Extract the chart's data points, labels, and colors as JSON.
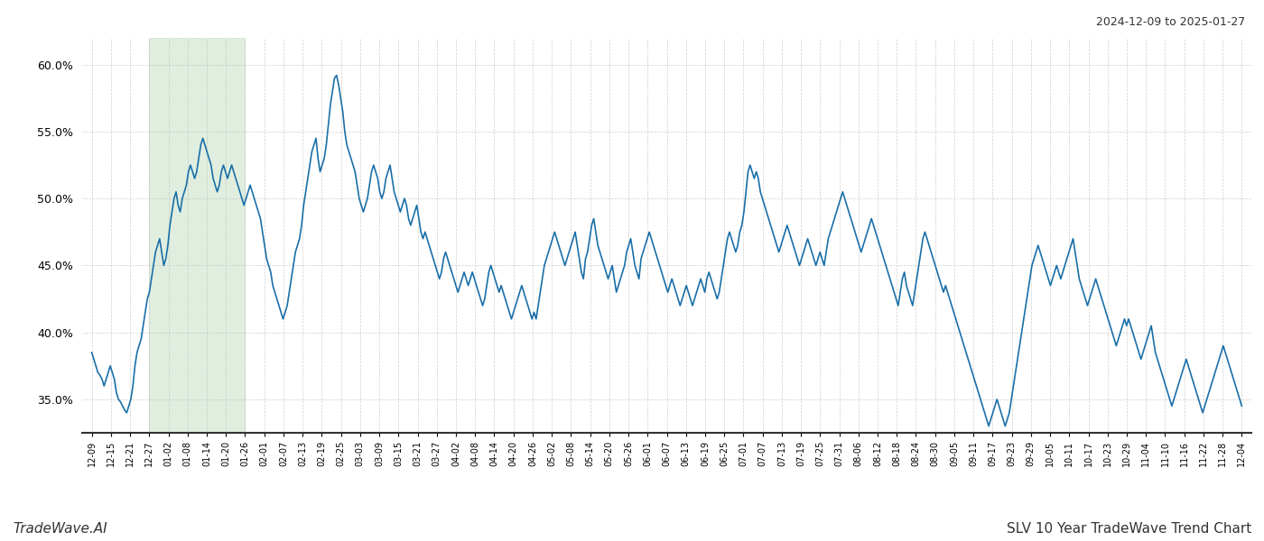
{
  "title_topright": "2024-12-09 to 2025-01-27",
  "title_bottomleft": "TradeWave.AI",
  "title_bottomright": "SLV 10 Year TradeWave Trend Chart",
  "background_color": "#ffffff",
  "line_color": "#1a6fa8",
  "line_width": 1.2,
  "shade_color": "#c8e0c8",
  "shade_alpha": 0.55,
  "ylim": [
    32.5,
    62.0
  ],
  "yticks": [
    35.0,
    40.0,
    45.0,
    50.0,
    55.0,
    60.0
  ],
  "xtick_labels": [
    "12-09",
    "12-15",
    "12-21",
    "12-27",
    "01-02",
    "01-08",
    "01-14",
    "01-20",
    "01-26",
    "02-01",
    "02-07",
    "02-13",
    "02-19",
    "02-25",
    "03-03",
    "03-09",
    "03-15",
    "03-21",
    "03-27",
    "04-02",
    "04-08",
    "04-14",
    "04-20",
    "04-26",
    "05-02",
    "05-08",
    "05-14",
    "05-20",
    "05-26",
    "06-01",
    "06-07",
    "06-13",
    "06-19",
    "06-25",
    "07-01",
    "07-07",
    "07-13",
    "07-19",
    "07-25",
    "07-31",
    "08-06",
    "08-12",
    "08-18",
    "08-24",
    "08-30",
    "09-05",
    "09-11",
    "09-17",
    "09-23",
    "09-29",
    "10-05",
    "10-11",
    "10-17",
    "10-23",
    "10-29",
    "11-04",
    "11-10",
    "11-16",
    "11-22",
    "11-28",
    "12-04"
  ],
  "shade_x_start_label": "12-27",
  "shade_x_end_label": "01-26",
  "y_values": [
    38.5,
    38.0,
    37.5,
    37.0,
    36.8,
    36.5,
    36.0,
    36.5,
    37.0,
    37.5,
    37.0,
    36.5,
    35.5,
    35.0,
    34.8,
    34.5,
    34.2,
    34.0,
    34.5,
    35.0,
    36.0,
    37.5,
    38.5,
    39.0,
    39.5,
    40.5,
    41.5,
    42.5,
    43.0,
    44.0,
    45.0,
    46.0,
    46.5,
    47.0,
    46.0,
    45.0,
    45.5,
    46.5,
    48.0,
    49.0,
    50.0,
    50.5,
    49.5,
    49.0,
    50.0,
    50.5,
    51.0,
    52.0,
    52.5,
    52.0,
    51.5,
    52.0,
    53.0,
    54.0,
    54.5,
    54.0,
    53.5,
    53.0,
    52.5,
    51.5,
    51.0,
    50.5,
    51.0,
    52.0,
    52.5,
    52.0,
    51.5,
    52.0,
    52.5,
    52.0,
    51.5,
    51.0,
    50.5,
    50.0,
    49.5,
    50.0,
    50.5,
    51.0,
    50.5,
    50.0,
    49.5,
    49.0,
    48.5,
    47.5,
    46.5,
    45.5,
    45.0,
    44.5,
    43.5,
    43.0,
    42.5,
    42.0,
    41.5,
    41.0,
    41.5,
    42.0,
    43.0,
    44.0,
    45.0,
    46.0,
    46.5,
    47.0,
    48.0,
    49.5,
    50.5,
    51.5,
    52.5,
    53.5,
    54.0,
    54.5,
    53.0,
    52.0,
    52.5,
    53.0,
    54.0,
    55.5,
    57.0,
    58.0,
    59.0,
    59.2,
    58.5,
    57.5,
    56.5,
    55.0,
    54.0,
    53.5,
    53.0,
    52.5,
    52.0,
    51.0,
    50.0,
    49.5,
    49.0,
    49.5,
    50.0,
    51.0,
    52.0,
    52.5,
    52.0,
    51.5,
    50.5,
    50.0,
    50.5,
    51.5,
    52.0,
    52.5,
    51.5,
    50.5,
    50.0,
    49.5,
    49.0,
    49.5,
    50.0,
    49.5,
    48.5,
    48.0,
    48.5,
    49.0,
    49.5,
    48.5,
    47.5,
    47.0,
    47.5,
    47.0,
    46.5,
    46.0,
    45.5,
    45.0,
    44.5,
    44.0,
    44.5,
    45.5,
    46.0,
    45.5,
    45.0,
    44.5,
    44.0,
    43.5,
    43.0,
    43.5,
    44.0,
    44.5,
    44.0,
    43.5,
    44.0,
    44.5,
    44.0,
    43.5,
    43.0,
    42.5,
    42.0,
    42.5,
    43.5,
    44.5,
    45.0,
    44.5,
    44.0,
    43.5,
    43.0,
    43.5,
    43.0,
    42.5,
    42.0,
    41.5,
    41.0,
    41.5,
    42.0,
    42.5,
    43.0,
    43.5,
    43.0,
    42.5,
    42.0,
    41.5,
    41.0,
    41.5,
    41.0,
    42.0,
    43.0,
    44.0,
    45.0,
    45.5,
    46.0,
    46.5,
    47.0,
    47.5,
    47.0,
    46.5,
    46.0,
    45.5,
    45.0,
    45.5,
    46.0,
    46.5,
    47.0,
    47.5,
    46.5,
    45.5,
    44.5,
    44.0,
    45.5,
    46.0,
    47.0,
    48.0,
    48.5,
    47.5,
    46.5,
    46.0,
    45.5,
    45.0,
    44.5,
    44.0,
    44.5,
    45.0,
    44.0,
    43.0,
    43.5,
    44.0,
    44.5,
    45.0,
    46.0,
    46.5,
    47.0,
    46.0,
    45.0,
    44.5,
    44.0,
    45.5,
    46.0,
    46.5,
    47.0,
    47.5,
    47.0,
    46.5,
    46.0,
    45.5,
    45.0,
    44.5,
    44.0,
    43.5,
    43.0,
    43.5,
    44.0,
    43.5,
    43.0,
    42.5,
    42.0,
    42.5,
    43.0,
    43.5,
    43.0,
    42.5,
    42.0,
    42.5,
    43.0,
    43.5,
    44.0,
    43.5,
    43.0,
    44.0,
    44.5,
    44.0,
    43.5,
    43.0,
    42.5,
    43.0,
    44.0,
    45.0,
    46.0,
    47.0,
    47.5,
    47.0,
    46.5,
    46.0,
    46.5,
    47.5,
    48.0,
    49.0,
    50.5,
    52.0,
    52.5,
    52.0,
    51.5,
    52.0,
    51.5,
    50.5,
    50.0,
    49.5,
    49.0,
    48.5,
    48.0,
    47.5,
    47.0,
    46.5,
    46.0,
    46.5,
    47.0,
    47.5,
    48.0,
    47.5,
    47.0,
    46.5,
    46.0,
    45.5,
    45.0,
    45.5,
    46.0,
    46.5,
    47.0,
    46.5,
    46.0,
    45.5,
    45.0,
    45.5,
    46.0,
    45.5,
    45.0,
    46.0,
    47.0,
    47.5,
    48.0,
    48.5,
    49.0,
    49.5,
    50.0,
    50.5,
    50.0,
    49.5,
    49.0,
    48.5,
    48.0,
    47.5,
    47.0,
    46.5,
    46.0,
    46.5,
    47.0,
    47.5,
    48.0,
    48.5,
    48.0,
    47.5,
    47.0,
    46.5,
    46.0,
    45.5,
    45.0,
    44.5,
    44.0,
    43.5,
    43.0,
    42.5,
    42.0,
    43.0,
    44.0,
    44.5,
    43.5,
    43.0,
    42.5,
    42.0,
    43.0,
    44.0,
    45.0,
    46.0,
    47.0,
    47.5,
    47.0,
    46.5,
    46.0,
    45.5,
    45.0,
    44.5,
    44.0,
    43.5,
    43.0,
    43.5,
    43.0,
    42.5,
    42.0,
    41.5,
    41.0,
    40.5,
    40.0,
    39.5,
    39.0,
    38.5,
    38.0,
    37.5,
    37.0,
    36.5,
    36.0,
    35.5,
    35.0,
    34.5,
    34.0,
    33.5,
    33.0,
    33.5,
    34.0,
    34.5,
    35.0,
    34.5,
    34.0,
    33.5,
    33.0,
    33.5,
    34.0,
    35.0,
    36.0,
    37.0,
    38.0,
    39.0,
    40.0,
    41.0,
    42.0,
    43.0,
    44.0,
    45.0,
    45.5,
    46.0,
    46.5,
    46.0,
    45.5,
    45.0,
    44.5,
    44.0,
    43.5,
    44.0,
    44.5,
    45.0,
    44.5,
    44.0,
    44.5,
    45.0,
    45.5,
    46.0,
    46.5,
    47.0,
    46.0,
    45.0,
    44.0,
    43.5,
    43.0,
    42.5,
    42.0,
    42.5,
    43.0,
    43.5,
    44.0,
    43.5,
    43.0,
    42.5,
    42.0,
    41.5,
    41.0,
    40.5,
    40.0,
    39.5,
    39.0,
    39.5,
    40.0,
    40.5,
    41.0,
    40.5,
    41.0,
    40.5,
    40.0,
    39.5,
    39.0,
    38.5,
    38.0,
    38.5,
    39.0,
    39.5,
    40.0,
    40.5,
    39.5,
    38.5,
    38.0,
    37.5,
    37.0,
    36.5,
    36.0,
    35.5,
    35.0,
    34.5,
    35.0,
    35.5,
    36.0,
    36.5,
    37.0,
    37.5,
    38.0,
    37.5,
    37.0,
    36.5,
    36.0,
    35.5,
    35.0,
    34.5,
    34.0,
    34.5,
    35.0,
    35.5,
    36.0,
    36.5,
    37.0,
    37.5,
    38.0,
    38.5,
    39.0,
    38.5,
    38.0,
    37.5,
    37.0,
    36.5,
    36.0,
    35.5,
    35.0,
    34.5
  ]
}
